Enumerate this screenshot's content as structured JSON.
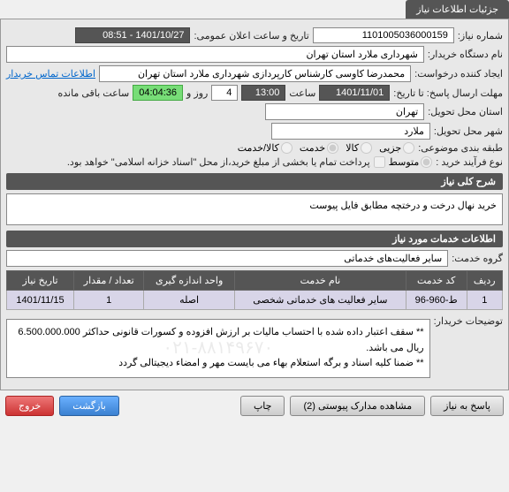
{
  "tab_title": "جزئیات اطلاعات نیاز",
  "fields": {
    "need_no_label": "شماره نیاز:",
    "need_no": "1101005036000159",
    "announce_label": "تاریخ و ساعت اعلان عمومی:",
    "announce": "1401/10/27 - 08:51",
    "buyer_org_label": "نام دستگاه خریدار:",
    "buyer_org": "شهرداری ملارد استان تهران",
    "requester_label": "ایجاد کننده درخواست:",
    "requester": "محمدرضا کاوسی کارشناس کارپردازی شهرداری ملارد استان تهران",
    "contact_link": "اطلاعات تماس خریدار",
    "deadline_label": "مهلت ارسال پاسخ: تا تاریخ:",
    "deadline_date": "1401/11/01",
    "time_word": "ساعت",
    "deadline_time": "13:00",
    "days_word": "روز و",
    "days_left": "4",
    "timer": "04:04:36",
    "remaining": "ساعت باقی مانده",
    "province_label": "استان محل تحویل:",
    "province": "تهران",
    "city_label": "شهر محل تحویل:",
    "city": "ملارد",
    "class_label": "طبقه بندی موضوعی:",
    "process_label": "نوع فرآیند خرید :",
    "pay_note": "پرداخت تمام یا بخشی از مبلغ خرید،از محل \"اسناد خزانه اسلامی\" خواهد بود."
  },
  "class_options": {
    "partial": "جزیی",
    "goods": "کالا",
    "service": "خدمت",
    "goods_service": "کالا/خدمت"
  },
  "process_options": {
    "medium": "متوسط"
  },
  "desc_header": "شرح کلی نیاز",
  "description": "خرید نهال درخت و درختچه مطابق فایل پیوست",
  "services_header": "اطلاعات خدمات مورد نیاز",
  "service_group_label": "گروه خدمت:",
  "service_group": "سایر فعالیت‌های خدماتی",
  "table": {
    "columns": [
      "ردیف",
      "کد خدمت",
      "نام خدمت",
      "واحد اندازه گیری",
      "تعداد / مقدار",
      "تاریخ نیاز"
    ],
    "rows": [
      [
        "1",
        "ط-960-96",
        "سایر فعالیت های خدماتی شخصی",
        "اصله",
        "1",
        "1401/11/15"
      ]
    ]
  },
  "buyer_notes_label": "توضیحات خریدار:",
  "buyer_notes_line1": "** سقف اعتبار داده شده با احتساب مالیات بر ارزش افزوده و کسورات قانونی حداکثر 6.500.000.000 ریال می باشد.",
  "buyer_notes_line2": "** ضمنا کلیه اسناد و برگه استعلام بهاء می بایست مهر و امضاء دیجیتالی گردد",
  "watermark": "۰۲۱-۸۸۱۴۹۶۷۰",
  "buttons": {
    "respond": "پاسخ به نیاز",
    "attachments": "مشاهده مدارک پیوستی (2)",
    "print": "چاپ",
    "back": "بازگشت",
    "exit": "خروج"
  }
}
